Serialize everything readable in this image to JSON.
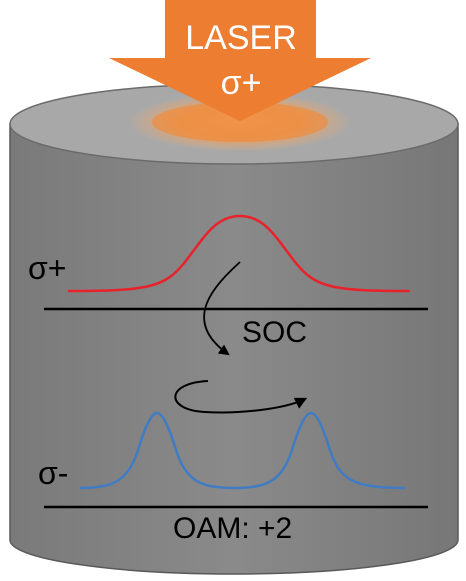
{
  "laser": {
    "line1": "LASER",
    "line2": "σ+",
    "color": "#ED7D31",
    "glow_color": "#F4A460"
  },
  "cylinder": {
    "top_color": "#A6A6A6",
    "side_color": "#808080",
    "edge_color": "#595959"
  },
  "labels": {
    "upper_state": "σ+",
    "lower_state": "σ-",
    "coupling": "SOC",
    "oam": "OAM: +2"
  },
  "curves": {
    "upper_color": "#E8222A",
    "lower_color": "#3F7CC4"
  }
}
